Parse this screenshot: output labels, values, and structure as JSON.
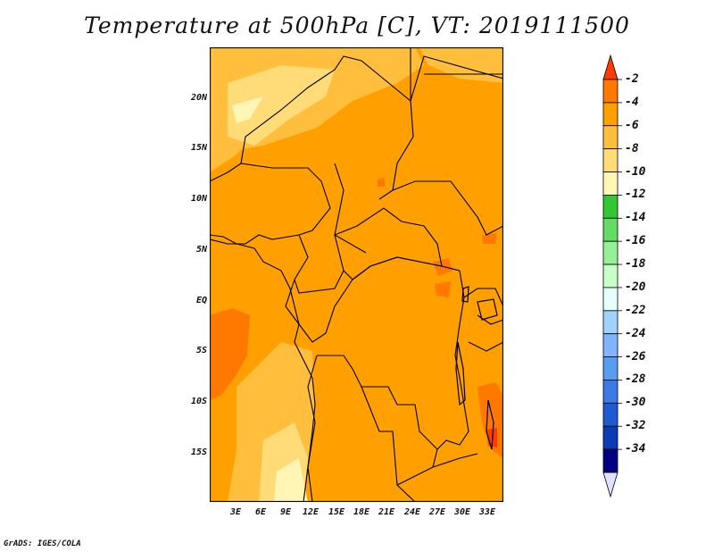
{
  "title": "Temperature at 500hPa [C], VT: 2019111500",
  "credit": "GrADS: IGES/COLA",
  "map": {
    "lat_labels": [
      "20N",
      "15N",
      "10N",
      "5N",
      "EQ",
      "5S",
      "10S",
      "15S"
    ],
    "lon_labels": [
      "3E",
      "6E",
      "9E",
      "12E",
      "15E",
      "18E",
      "21E",
      "24E",
      "27E",
      "30E",
      "33E"
    ]
  },
  "colorbar": {
    "labels": [
      "-2",
      "-4",
      "-6",
      "-8",
      "-10",
      "-12",
      "-14",
      "-16",
      "-18",
      "-20",
      "-22",
      "-24",
      "-26",
      "-28",
      "-30",
      "-32",
      "-34"
    ],
    "colors": [
      "#ff3c00",
      "#ff7800",
      "#ffa000",
      "#ffbe3c",
      "#ffdc78",
      "#fff5b4",
      "#32c832",
      "#64dc64",
      "#96f096",
      "#c8ffc8",
      "#e6ffff",
      "#a0d2ff",
      "#82b4ff",
      "#5a9cf0",
      "#3c78e6",
      "#1e5ad2",
      "#0a3cb4",
      "#000080",
      "#e1e1ff"
    ]
  },
  "field_colors": {
    "warm": "#ff7800",
    "main": "#ffa000",
    "cool": "#ffbe3c",
    "cooler": "#ffdc78",
    "coldest": "#fff5b4"
  }
}
